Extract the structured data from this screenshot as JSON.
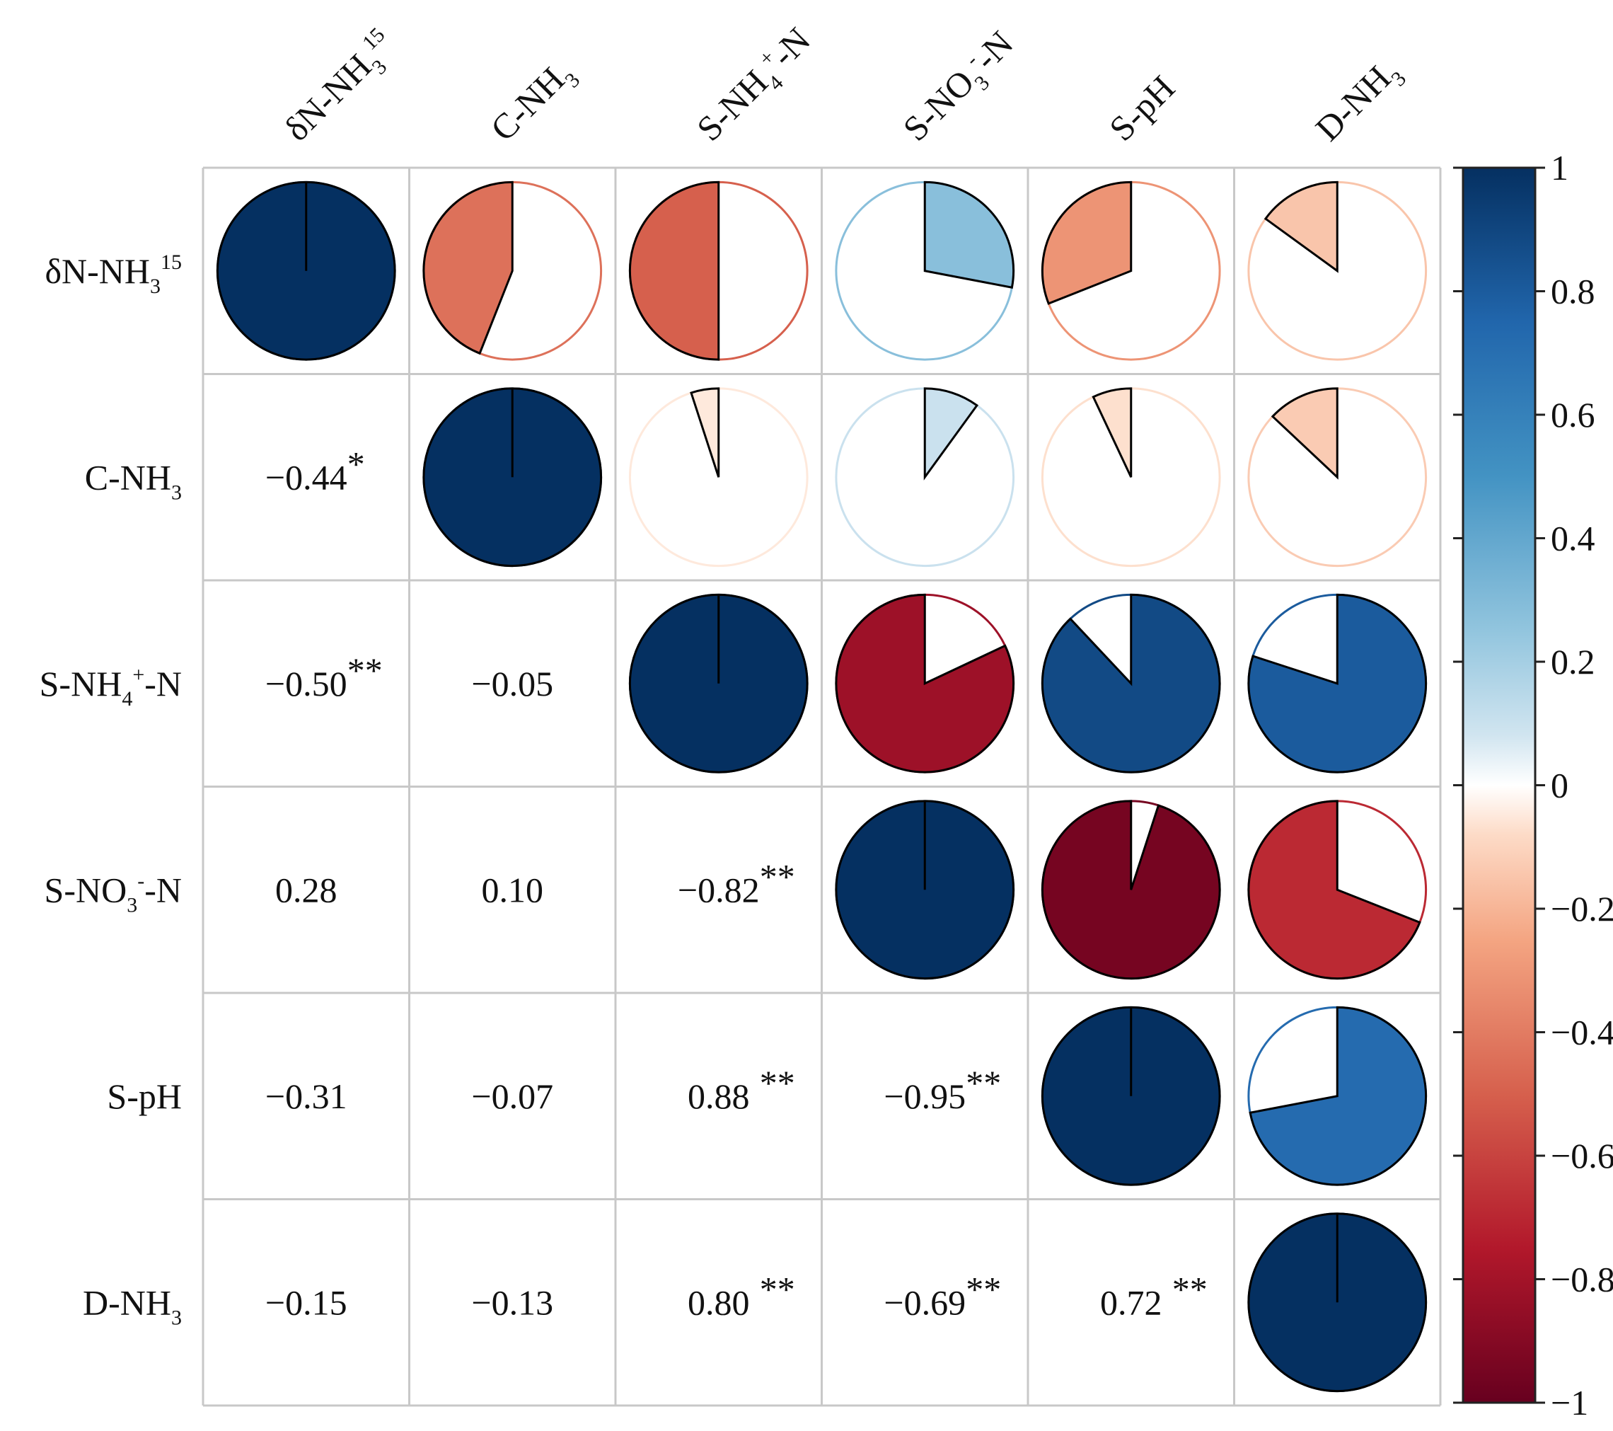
{
  "chart_data": {
    "type": "heatmap",
    "subtype": "correlation-matrix-pie",
    "title": "",
    "variables": [
      {
        "id": "d15n",
        "base": "δ",
        "sup": "15",
        "rest": "N-NH",
        "sub": "3",
        "tail": ""
      },
      {
        "id": "cnh3",
        "base": "C-NH",
        "sup": "",
        "rest": "",
        "sub": "3",
        "tail": ""
      },
      {
        "id": "snh4",
        "base": "S-NH",
        "sub": "4",
        "sup": "+",
        "rest": "",
        "tail": "-N"
      },
      {
        "id": "sno3",
        "base": "S-NO",
        "sub": "3",
        "sup": "-",
        "rest": "",
        "tail": "-N"
      },
      {
        "id": "sph",
        "base": "S-pH",
        "sup": "",
        "rest": "",
        "sub": "",
        "tail": ""
      },
      {
        "id": "dnh3",
        "base": "D-NH",
        "sup": "",
        "rest": "",
        "sub": "3",
        "tail": ""
      }
    ],
    "lower_labels": [
      {
        "row": 1,
        "col": 0,
        "text": "−0.44",
        "sig": "*"
      },
      {
        "row": 2,
        "col": 0,
        "text": "−0.50",
        "sig": "**"
      },
      {
        "row": 2,
        "col": 1,
        "text": "−0.05",
        "sig": ""
      },
      {
        "row": 3,
        "col": 0,
        "text": "0.28",
        "sig": ""
      },
      {
        "row": 3,
        "col": 1,
        "text": "0.10",
        "sig": ""
      },
      {
        "row": 3,
        "col": 2,
        "text": "−0.82",
        "sig": "**"
      },
      {
        "row": 4,
        "col": 0,
        "text": "−0.31",
        "sig": ""
      },
      {
        "row": 4,
        "col": 1,
        "text": "−0.07",
        "sig": ""
      },
      {
        "row": 4,
        "col": 2,
        "text": "0.88",
        "sig": "**"
      },
      {
        "row": 4,
        "col": 3,
        "text": "−0.95",
        "sig": "**"
      },
      {
        "row": 5,
        "col": 0,
        "text": "−0.15",
        "sig": ""
      },
      {
        "row": 5,
        "col": 1,
        "text": "−0.13",
        "sig": ""
      },
      {
        "row": 5,
        "col": 2,
        "text": "0.80",
        "sig": "**"
      },
      {
        "row": 5,
        "col": 3,
        "text": "−0.69",
        "sig": "**"
      },
      {
        "row": 5,
        "col": 4,
        "text": "0.72",
        "sig": "**"
      }
    ],
    "colorbar": {
      "range": [
        -1,
        1
      ],
      "tick_labels": [
        "1",
        "0.8",
        "0.6",
        "0.4",
        "0.2",
        "0",
        "−0.2",
        "−0.4",
        "−0.6",
        "−0.8",
        "−1"
      ],
      "tick_values": [
        1,
        0.8,
        0.6,
        0.4,
        0.2,
        0,
        -0.2,
        -0.4,
        -0.6,
        -0.8,
        -1
      ],
      "stops": [
        {
          "v": -1,
          "color": "#67001F"
        },
        {
          "v": -0.75,
          "color": "#B2182B"
        },
        {
          "v": -0.5,
          "color": "#D6604D"
        },
        {
          "v": -0.25,
          "color": "#F4A582"
        },
        {
          "v": -0.08,
          "color": "#FDDBC7"
        },
        {
          "v": 0,
          "color": "#FFFFFF"
        },
        {
          "v": 0.08,
          "color": "#D1E5F0"
        },
        {
          "v": 0.25,
          "color": "#92C5DE"
        },
        {
          "v": 0.5,
          "color": "#4393C3"
        },
        {
          "v": 0.75,
          "color": "#2166AC"
        },
        {
          "v": 1,
          "color": "#053061"
        }
      ]
    },
    "pie_radius_fraction": 0.43
  }
}
